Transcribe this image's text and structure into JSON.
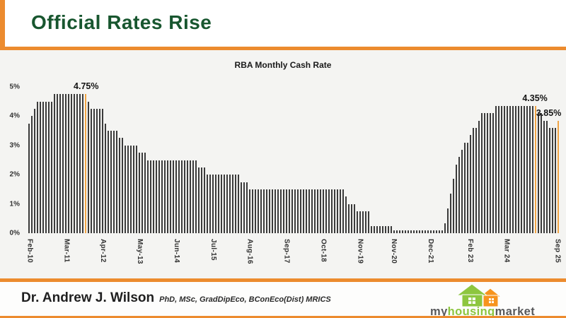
{
  "slide": {
    "title": "Official Rates Rise",
    "footer": {
      "name": "Dr. Andrew J. Wilson",
      "credentials": "PhD, MSc, GradDipEco, BConEco(Dist) MRICS"
    },
    "logo": {
      "part1": "my",
      "part2": "housing",
      "part3": "market"
    }
  },
  "colors": {
    "accent_orange": "#EC8B2E",
    "highlight_bar_orange": "#F0A445",
    "title_green": "#18562F",
    "bar_dark": "#3B3B3B",
    "logo_green": "#8DC63F",
    "logo_orange": "#F7941E",
    "logo_gray": "#58595B"
  },
  "chart_data": {
    "type": "bar",
    "title": "RBA Monthly Cash Rate",
    "xlabel": "",
    "ylabel": "",
    "ylim": [
      0,
      5
    ],
    "grid": false,
    "legend": false,
    "x_start": "Feb-2010",
    "x_end": "Sep-2025",
    "values": [
      3.75,
      4.0,
      4.25,
      4.5,
      4.5,
      4.5,
      4.5,
      4.5,
      4.5,
      4.75,
      4.75,
      4.75,
      4.75,
      4.75,
      4.75,
      4.75,
      4.75,
      4.75,
      4.75,
      4.75,
      4.75,
      4.5,
      4.25,
      4.25,
      4.25,
      4.25,
      4.25,
      3.75,
      3.5,
      3.5,
      3.5,
      3.5,
      3.25,
      3.25,
      3.0,
      3.0,
      3.0,
      3.0,
      3.0,
      2.75,
      2.75,
      2.75,
      2.5,
      2.5,
      2.5,
      2.5,
      2.5,
      2.5,
      2.5,
      2.5,
      2.5,
      2.5,
      2.5,
      2.5,
      2.5,
      2.5,
      2.5,
      2.5,
      2.5,
      2.5,
      2.25,
      2.25,
      2.25,
      2.0,
      2.0,
      2.0,
      2.0,
      2.0,
      2.0,
      2.0,
      2.0,
      2.0,
      2.0,
      2.0,
      2.0,
      1.75,
      1.75,
      1.75,
      1.5,
      1.5,
      1.5,
      1.5,
      1.5,
      1.5,
      1.5,
      1.5,
      1.5,
      1.5,
      1.5,
      1.5,
      1.5,
      1.5,
      1.5,
      1.5,
      1.5,
      1.5,
      1.5,
      1.5,
      1.5,
      1.5,
      1.5,
      1.5,
      1.5,
      1.5,
      1.5,
      1.5,
      1.5,
      1.5,
      1.5,
      1.5,
      1.5,
      1.5,
      1.25,
      1.0,
      1.0,
      1.0,
      0.75,
      0.75,
      0.75,
      0.75,
      0.75,
      0.25,
      0.25,
      0.25,
      0.25,
      0.25,
      0.25,
      0.25,
      0.25,
      0.1,
      0.1,
      0.1,
      0.1,
      0.1,
      0.1,
      0.1,
      0.1,
      0.1,
      0.1,
      0.1,
      0.1,
      0.1,
      0.1,
      0.1,
      0.1,
      0.1,
      0.1,
      0.35,
      0.85,
      1.35,
      1.85,
      2.35,
      2.6,
      2.85,
      3.1,
      3.1,
      3.35,
      3.6,
      3.6,
      3.85,
      4.1,
      4.1,
      4.1,
      4.1,
      4.1,
      4.35,
      4.35,
      4.35,
      4.35,
      4.35,
      4.35,
      4.35,
      4.35,
      4.35,
      4.35,
      4.35,
      4.35,
      4.35,
      4.35,
      4.35,
      4.1,
      4.1,
      3.85,
      3.85,
      3.6,
      3.6,
      3.6,
      3.85
    ],
    "highlight_indices": [
      20,
      179,
      187
    ],
    "yticks": [
      {
        "label": "0%",
        "value": 0
      },
      {
        "label": "1%",
        "value": 1
      },
      {
        "label": "2%",
        "value": 2
      },
      {
        "label": "3%",
        "value": 3
      },
      {
        "label": "4%",
        "value": 4
      },
      {
        "label": "5%",
        "value": 5
      }
    ],
    "xticks": [
      {
        "label": "Feb-10",
        "index": 0
      },
      {
        "label": "Mar-11",
        "index": 13
      },
      {
        "label": "Apr-12",
        "index": 26
      },
      {
        "label": "May-13",
        "index": 39
      },
      {
        "label": "Jun-14",
        "index": 52
      },
      {
        "label": "Jul-15",
        "index": 65
      },
      {
        "label": "Aug-16",
        "index": 78
      },
      {
        "label": "Sep-17",
        "index": 91
      },
      {
        "label": "Oct-18",
        "index": 104
      },
      {
        "label": "Nov-19",
        "index": 117
      },
      {
        "label": "Nov-20",
        "index": 129
      },
      {
        "label": "Dec-21",
        "index": 142
      },
      {
        "label": "Feb 23",
        "index": 156
      },
      {
        "label": "Mar 24",
        "index": 169
      },
      {
        "label": "Sep 25",
        "index": 187
      }
    ],
    "annotations": [
      {
        "text": "4.75%",
        "index": 20,
        "value": 4.75,
        "align": "center"
      },
      {
        "text": "4.35%",
        "index": 179,
        "value": 4.35,
        "align": "center"
      },
      {
        "text": "3.85%",
        "index": 187,
        "value": 3.85,
        "align": "right"
      }
    ]
  }
}
